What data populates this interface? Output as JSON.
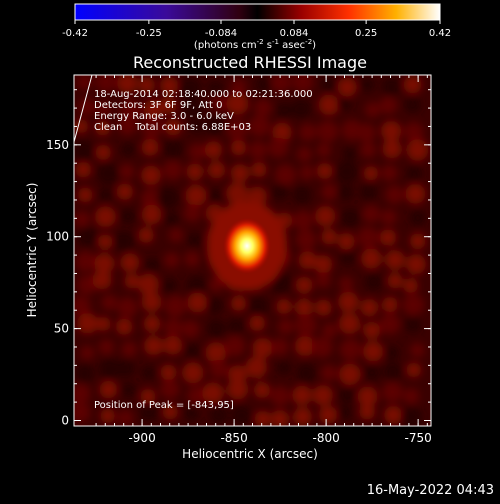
{
  "colorbar": {
    "ticks": [
      "-0.42",
      "-0.25",
      "-0.084",
      "0.084",
      "0.25",
      "0.42"
    ],
    "unit": {
      "open": "(photons cm",
      "exp1": "-2",
      "mid1": " s",
      "exp2": "-1",
      "mid2": " asec",
      "exp3": "-2",
      "close": ")"
    },
    "range": [
      -0.42,
      0.42
    ]
  },
  "chart_data": {
    "type": "heatmap",
    "title": "Reconstructed RHESSI Image",
    "xlabel": "Heliocentric X (arcsec)",
    "ylabel": "Heliocentric Y (arcsec)",
    "xlim": [
      -937,
      -743
    ],
    "ylim": [
      -3,
      188
    ],
    "x_ticks": [
      "-900",
      "-850",
      "-800",
      "-750"
    ],
    "y_ticks": [
      "0",
      "50",
      "100",
      "150"
    ],
    "x_tick_values": [
      -900,
      -850,
      -800,
      -750
    ],
    "y_tick_values": [
      0,
      50,
      100,
      150
    ],
    "peak": {
      "x": -843,
      "y": 95,
      "value": 0.42
    },
    "annotations": [
      "18-Aug-2014 02:18:40.000 to 02:21:36.000",
      "Detectors: 3F 6F 9F, Att 0",
      "Energy Range: 3.0 - 6.0 keV",
      "Clean    Total counts: 6.88E+03"
    ],
    "peak_label": "Position of Peak = [-843,95]"
  },
  "timestamp": "16-May-2022 04:43"
}
